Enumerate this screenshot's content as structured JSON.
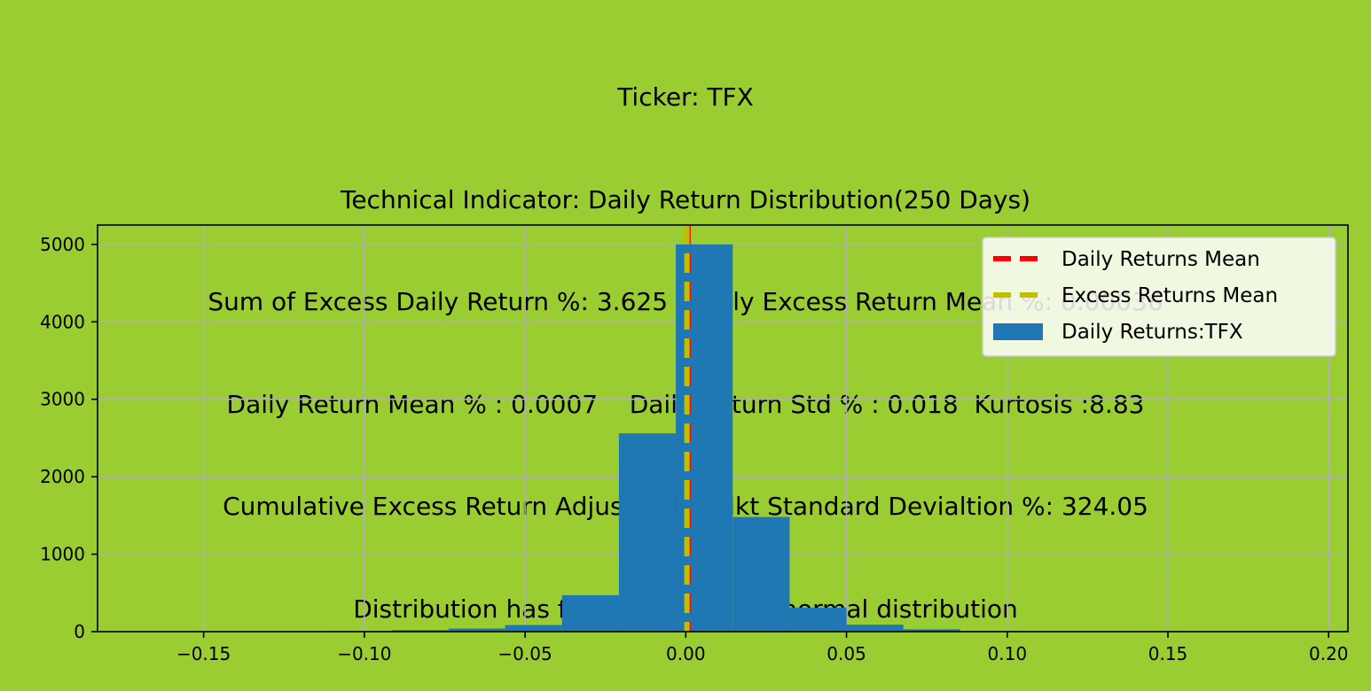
{
  "chart_data": {
    "type": "bar",
    "title_lines": [
      "Ticker: TFX",
      "Technical Indicator: Daily Return Distribution(250 Days)",
      "Sum of Excess Daily Return %: 3.625   Daily Excess Return Mean %: 0.00036",
      "Daily Return Mean % : 0.0007    Daily Return Std % : 0.018  Kurtosis :8.83",
      "Cumulative Excess Return Adjusted for Mkt Standard Devialtion %: 324.05",
      "Distribution has fatter tails than a normal distribution"
    ],
    "xlabel": "",
    "ylabel": "",
    "xlim": [
      -0.183,
      0.206
    ],
    "ylim": [
      0,
      5250
    ],
    "grid": true,
    "x_ticks": [
      -0.15,
      -0.1,
      -0.05,
      0.0,
      0.05,
      0.1,
      0.15,
      0.2
    ],
    "x_tick_labels": [
      "−0.15",
      "−0.10",
      "−0.05",
      "0.00",
      "0.05",
      "0.10",
      "0.15",
      "0.20"
    ],
    "y_ticks": [
      0,
      1000,
      2000,
      3000,
      4000,
      5000
    ],
    "y_tick_labels": [
      "0",
      "1000",
      "2000",
      "3000",
      "4000",
      "5000"
    ],
    "histogram": {
      "name": "Daily Returns:TFX",
      "color": "#1f77b4",
      "bins": [
        {
          "x0": -0.1446,
          "x1": -0.1269,
          "count": 2
        },
        {
          "x0": -0.1269,
          "x1": -0.1092,
          "count": 3
        },
        {
          "x0": -0.1092,
          "x1": -0.0915,
          "count": 6
        },
        {
          "x0": -0.0915,
          "x1": -0.0738,
          "count": 20
        },
        {
          "x0": -0.0738,
          "x1": -0.0562,
          "count": 40
        },
        {
          "x0": -0.0562,
          "x1": -0.0385,
          "count": 85
        },
        {
          "x0": -0.0385,
          "x1": -0.0208,
          "count": 470
        },
        {
          "x0": -0.0208,
          "x1": -0.0031,
          "count": 2560
        },
        {
          "x0": -0.0031,
          "x1": 0.0146,
          "count": 5000
        },
        {
          "x0": 0.0146,
          "x1": 0.0323,
          "count": 1480
        },
        {
          "x0": 0.0323,
          "x1": 0.05,
          "count": 310
        },
        {
          "x0": 0.05,
          "x1": 0.0677,
          "count": 90
        },
        {
          "x0": 0.0677,
          "x1": 0.0854,
          "count": 30
        },
        {
          "x0": 0.0854,
          "x1": 0.1031,
          "count": 8
        },
        {
          "x0": 0.1031,
          "x1": 0.1208,
          "count": 3
        },
        {
          "x0": 0.1208,
          "x1": 0.1385,
          "count": 2
        },
        {
          "x0": 0.1385,
          "x1": 0.1562,
          "count": 1
        },
        {
          "x0": 0.1562,
          "x1": 0.1739,
          "count": 1
        },
        {
          "x0": 0.1739,
          "x1": 0.1916,
          "count": 1
        }
      ]
    },
    "vlines": [
      {
        "name": "Daily Returns Mean",
        "x": 0.0007,
        "color": "#ff0000",
        "style": "dashed"
      },
      {
        "name": "Excess Returns Mean",
        "x": 0.00036,
        "color": "#bfbf00",
        "style": "dashed"
      }
    ],
    "legend": {
      "placement": "top-right",
      "entries": [
        "Daily Returns Mean",
        "Excess Returns Mean",
        "Daily Returns:TFX"
      ]
    }
  }
}
